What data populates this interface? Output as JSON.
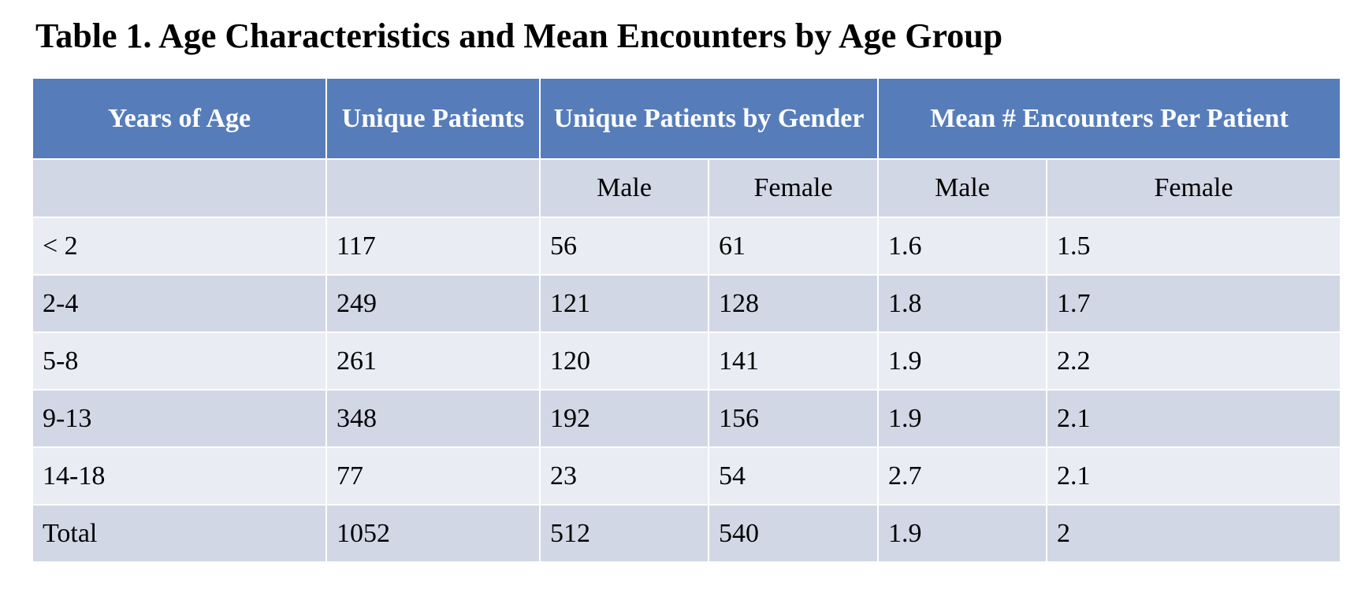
{
  "title": "Table 1. Age Characteristics and Mean Encounters by Age Group",
  "colors": {
    "header_bg": "#567dba",
    "header_text": "#ffffff",
    "row_light": "#e9ecf3",
    "row_dark": "#d1d7e5"
  },
  "table": {
    "headers": {
      "years_of_age": "Years of Age",
      "unique_patients": "Unique Patients",
      "unique_by_gender": "Unique Patients by Gender",
      "mean_encounters": "Mean # Encounters Per Patient"
    },
    "subheaders": {
      "blank_1": "",
      "blank_2": "",
      "male_1": "Male",
      "female_1": "Female",
      "male_2": "Male",
      "female_2": "Female"
    },
    "rows": [
      [
        "< 2",
        "117",
        "56",
        "61",
        "1.6",
        "1.5"
      ],
      [
        "2-4",
        "249",
        "121",
        "128",
        "1.8",
        "1.7"
      ],
      [
        "5-8",
        "261",
        "120",
        "141",
        "1.9",
        "2.2"
      ],
      [
        "9-13",
        "348",
        "192",
        "156",
        "1.9",
        "2.1"
      ],
      [
        "14-18",
        "77",
        "23",
        "54",
        "2.7",
        "2.1"
      ],
      [
        "Total",
        "1052",
        "512",
        "540",
        "1.9",
        "2"
      ]
    ]
  }
}
